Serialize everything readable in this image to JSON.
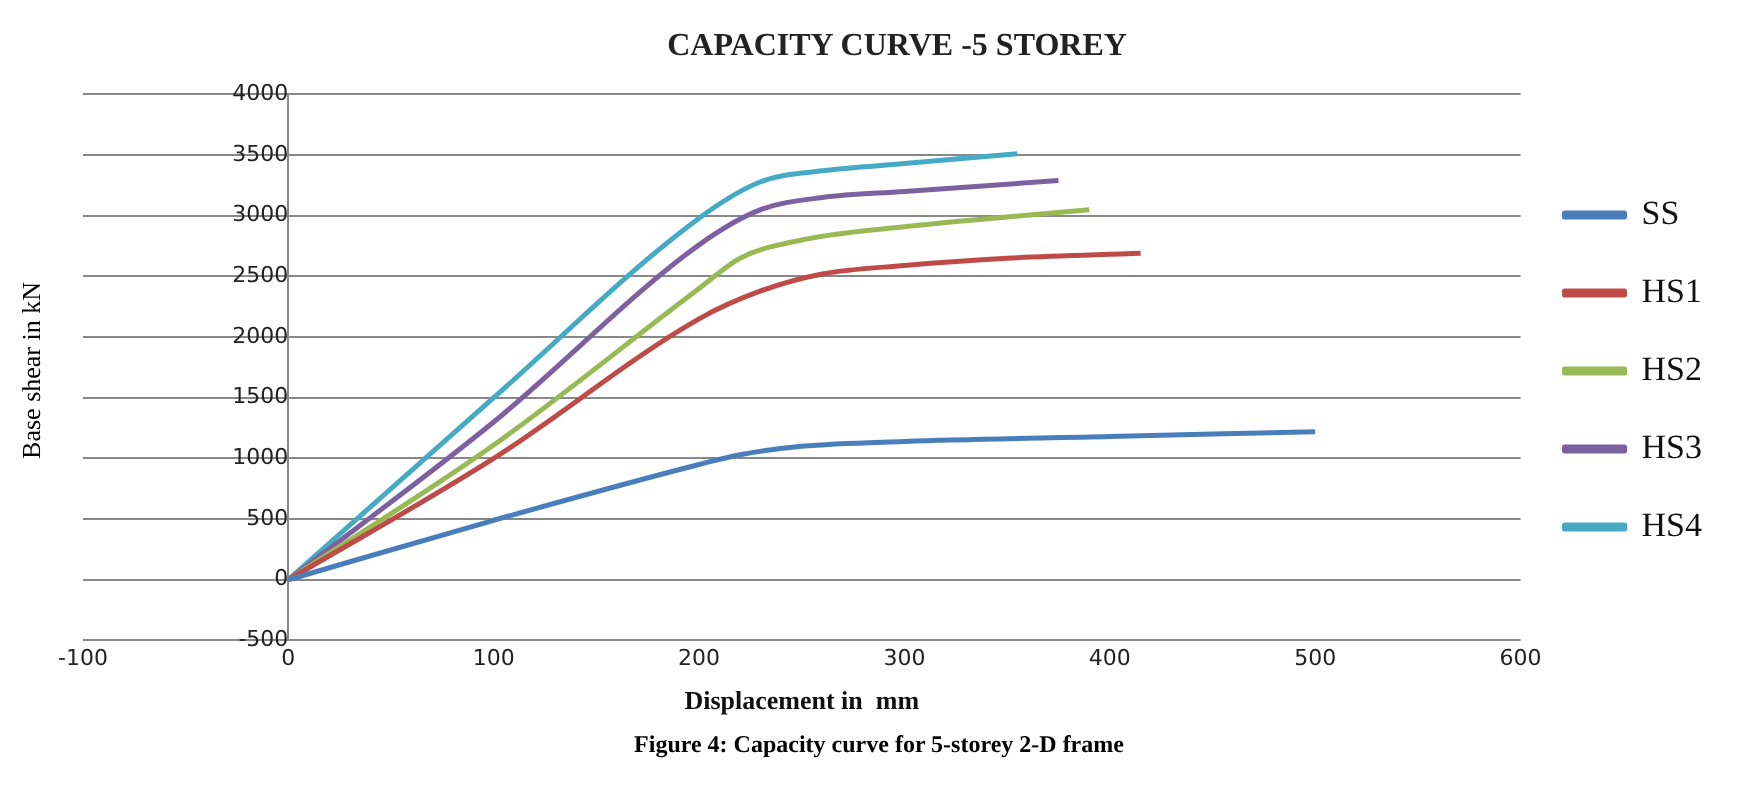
{
  "chart_data": {
    "type": "line",
    "title": "CAPACITY CURVE -5 STOREY",
    "xlabel": "Displacement in  mm",
    "ylabel": "Base shear in kN",
    "annotations": [
      "Figure 4: Capacity curve for 5-storey 2-D frame"
    ],
    "xlim": [
      -100,
      600
    ],
    "xticks": [
      -100,
      0,
      100,
      200,
      300,
      400,
      500,
      600
    ],
    "ylim": [
      -500,
      4000
    ],
    "yticks": [
      -500,
      0,
      500,
      1000,
      1500,
      2000,
      2500,
      3000,
      3500,
      4000
    ],
    "grid": "y",
    "legend": "right",
    "marker": "none",
    "line_style": "solid",
    "series": [
      {
        "name": "SS",
        "color": "#4a7ebb",
        "x": [
          0,
          100,
          200,
          220,
          250,
          300,
          400,
          500
        ],
        "values": [
          0,
          490,
          950,
          1030,
          1100,
          1140,
          1180,
          1220
        ]
      },
      {
        "name": "HS1",
        "color": "#be4b48",
        "x": [
          0,
          100,
          200,
          230,
          260,
          300,
          350,
          415
        ],
        "values": [
          0,
          1000,
          2150,
          2380,
          2520,
          2590,
          2650,
          2690
        ]
      },
      {
        "name": "HS2",
        "color": "#98b954",
        "x": [
          0,
          100,
          200,
          220,
          250,
          300,
          350,
          390
        ],
        "values": [
          0,
          1110,
          2400,
          2650,
          2800,
          2910,
          2990,
          3050
        ]
      },
      {
        "name": "HS3",
        "color": "#7d60a0",
        "x": [
          0,
          100,
          200,
          230,
          260,
          300,
          375
        ],
        "values": [
          0,
          1300,
          2760,
          3050,
          3150,
          3200,
          3290
        ]
      },
      {
        "name": "HS4",
        "color": "#46aac5",
        "x": [
          0,
          100,
          200,
          230,
          260,
          300,
          355
        ],
        "values": [
          0,
          1500,
          2980,
          3280,
          3370,
          3430,
          3510
        ]
      }
    ]
  }
}
